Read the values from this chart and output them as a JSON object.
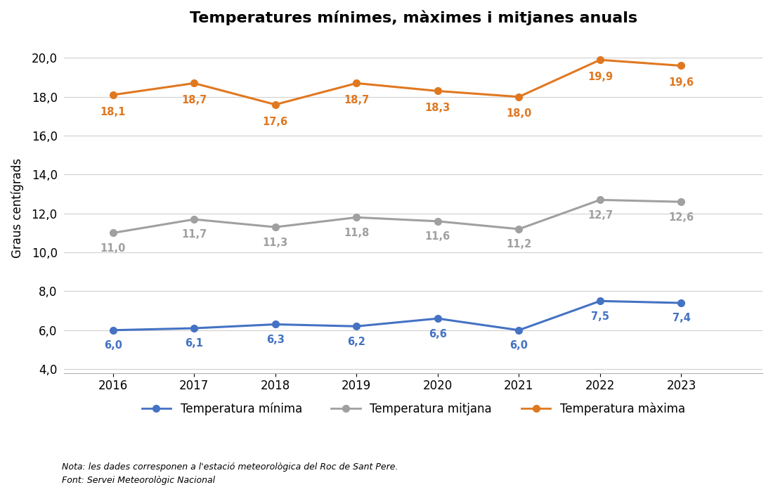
{
  "title": "Temperatures mínimes, màximes i mitjanes anuals",
  "years": [
    2016,
    2017,
    2018,
    2019,
    2020,
    2021,
    2022,
    2023
  ],
  "temp_minima": [
    6.0,
    6.1,
    6.3,
    6.2,
    6.6,
    6.0,
    7.5,
    7.4
  ],
  "temp_mitjana": [
    11.0,
    11.7,
    11.3,
    11.8,
    11.6,
    11.2,
    12.7,
    12.6
  ],
  "temp_maxima": [
    18.1,
    18.7,
    17.6,
    18.7,
    18.3,
    18.0,
    19.9,
    19.6
  ],
  "color_minima": "#4472C4",
  "color_mitjana": "#A0A0A0",
  "color_maxima": "#E07820",
  "ylabel": "Graus centígrads",
  "ylim": [
    3.8,
    20.8
  ],
  "yticks": [
    4.0,
    6.0,
    8.0,
    10.0,
    12.0,
    14.0,
    16.0,
    18.0,
    20.0
  ],
  "note1": "Nota: les dades corresponen a l'estació meteorològica del Roc de Sant Pere.",
  "note2": "Font: Servei Meteorològic Nacional",
  "background_color": "#ffffff",
  "legend_labels": [
    "Temperatura mínima",
    "Temperatura mitjana",
    "Temperatura màxima"
  ]
}
